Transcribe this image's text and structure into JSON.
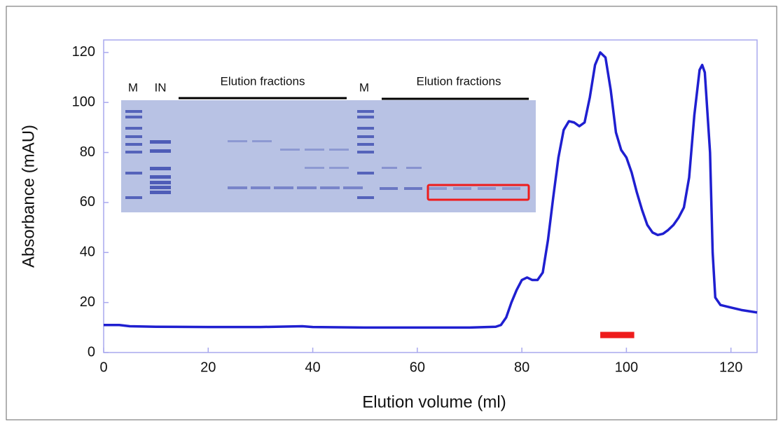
{
  "chart_data": {
    "type": "line",
    "x_label": "Elution volume (ml)",
    "y_label": "Absorbance (mAU)",
    "x": [
      0,
      3,
      5,
      10,
      20,
      30,
      38,
      40,
      50,
      60,
      70,
      75,
      76,
      77,
      78,
      79,
      80,
      81,
      82,
      83,
      84,
      85,
      86,
      87,
      88,
      89,
      90,
      91,
      92,
      93,
      94,
      95,
      96,
      97,
      98,
      99,
      100,
      101,
      102,
      103,
      104,
      105,
      106,
      107,
      108,
      109,
      110,
      111,
      112,
      113,
      114,
      114.5,
      115,
      116,
      116.5,
      117,
      118,
      120,
      122,
      125
    ],
    "series": [
      {
        "color": "#1f1fd0",
        "values": [
          11,
          11,
          10.5,
          10.3,
          10.2,
          10.2,
          10.5,
          10.2,
          10,
          10,
          10,
          10.3,
          11,
          14,
          20,
          25,
          29,
          30,
          29,
          29,
          32,
          45,
          62,
          78,
          89,
          92.5,
          92,
          90.5,
          92,
          102,
          115,
          120,
          118,
          105,
          88,
          81,
          78,
          72,
          64,
          57,
          51,
          48,
          47,
          47.5,
          49,
          51,
          54,
          58,
          70,
          95,
          113,
          115,
          112,
          80,
          40,
          22,
          19,
          18,
          17,
          16
        ]
      }
    ],
    "xlim": [
      0,
      125
    ],
    "ylim": [
      0,
      125
    ],
    "xticks": [
      0,
      20,
      40,
      60,
      80,
      100,
      120
    ],
    "yticks": [
      0,
      20,
      40,
      60,
      80,
      100,
      120
    ],
    "fraction_bar": {
      "x": [
        95,
        101.5
      ],
      "y": 7,
      "color": "#ee1c1c"
    },
    "inset": {
      "labels": [
        "M",
        "IN",
        "Elution fractions",
        "M",
        "Elution fractions"
      ]
    }
  }
}
